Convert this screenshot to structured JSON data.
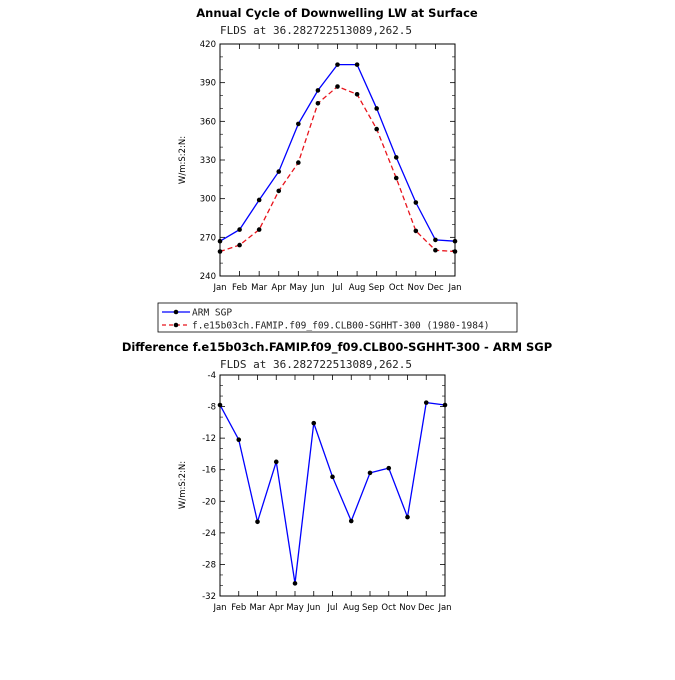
{
  "chart_data": [
    {
      "type": "line",
      "title": "Annual Cycle of Downwelling LW at Surface",
      "subtitle": "FLDS at 36.282722513089,262.5",
      "ylabel": "W/m:S:2:N:",
      "ylim": [
        240,
        420
      ],
      "yticks": [
        240,
        270,
        300,
        330,
        360,
        390,
        420
      ],
      "categories": [
        "Jan",
        "Feb",
        "Mar",
        "Apr",
        "May",
        "Jun",
        "Jul",
        "Aug",
        "Sep",
        "Oct",
        "Nov",
        "Dec",
        "Jan"
      ],
      "series": [
        {
          "name": "ARM SGP",
          "color": "#0000ff",
          "dash": "solid",
          "values": [
            267,
            276,
            299,
            321,
            358,
            384,
            404,
            404,
            370,
            332,
            297,
            268,
            267
          ]
        },
        {
          "name": "f.e15b03ch.FAMIP.f09_f09.CLB00-SGHHT-300 (1980-1984)",
          "color": "#e8141c",
          "dash": "dashed",
          "values": [
            259,
            264,
            276,
            306,
            328,
            374,
            387,
            381,
            354,
            316,
            275,
            260,
            259
          ]
        }
      ],
      "legend": "bottom"
    },
    {
      "type": "line",
      "title": "Difference f.e15b03ch.FAMIP.f09_f09.CLB00-SGHHT-300 - ARM SGP",
      "subtitle": "FLDS at 36.282722513089,262.5",
      "ylabel": "W/m:S:2:N:",
      "ylim": [
        -32,
        -4
      ],
      "yticks": [
        -32,
        -28,
        -24,
        -20,
        -16,
        -12,
        -8,
        -4
      ],
      "categories": [
        "Jan",
        "Feb",
        "Mar",
        "Apr",
        "May",
        "Jun",
        "Jul",
        "Aug",
        "Sep",
        "Oct",
        "Nov",
        "Dec",
        "Jan"
      ],
      "series": [
        {
          "color": "#0000ff",
          "dash": "solid",
          "values": [
            -7.8,
            -12.2,
            -22.6,
            -15.0,
            -30.4,
            -10.1,
            -16.9,
            -22.5,
            -16.4,
            -15.8,
            -22.0,
            -7.5,
            -7.8
          ]
        }
      ]
    }
  ]
}
